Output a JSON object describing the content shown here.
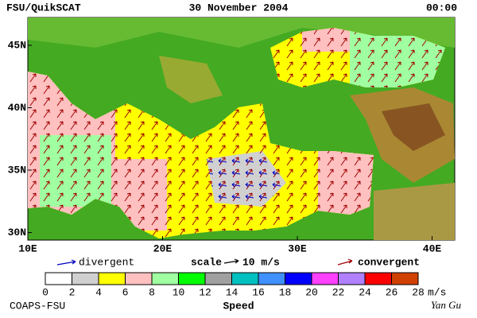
{
  "header": {
    "left": "FSU/QuikSCAT",
    "center": "30 November 2004",
    "right": "00:00"
  },
  "map": {
    "lat_labels": [
      "45N",
      "40N",
      "35N",
      "30N"
    ],
    "lon_labels": [
      "10E",
      "20E",
      "30E",
      "40E"
    ]
  },
  "legend": {
    "divergent": "divergent",
    "divergent_color": "#0000c0",
    "scale": "scale",
    "scale_text": "10 m/s",
    "convergent": "convergent",
    "convergent_color": "#a00000"
  },
  "colorbar": {
    "colors": [
      "#ffffff",
      "#d0d0d0",
      "#ffff00",
      "#ffc0c0",
      "#a0ffa0",
      "#00ff00",
      "#a0a0a0",
      "#00c0c0",
      "#4090ff",
      "#0000ff",
      "#ff40ff",
      "#b080ff",
      "#ff0000",
      "#d04000"
    ],
    "ticks": [
      0,
      2,
      4,
      6,
      8,
      10,
      12,
      14,
      16,
      18,
      20,
      22,
      24,
      26,
      28
    ],
    "unit": "m/s",
    "title": "Speed"
  },
  "footer": {
    "left": "COAPS-FSU",
    "right": "Yan Gu"
  }
}
